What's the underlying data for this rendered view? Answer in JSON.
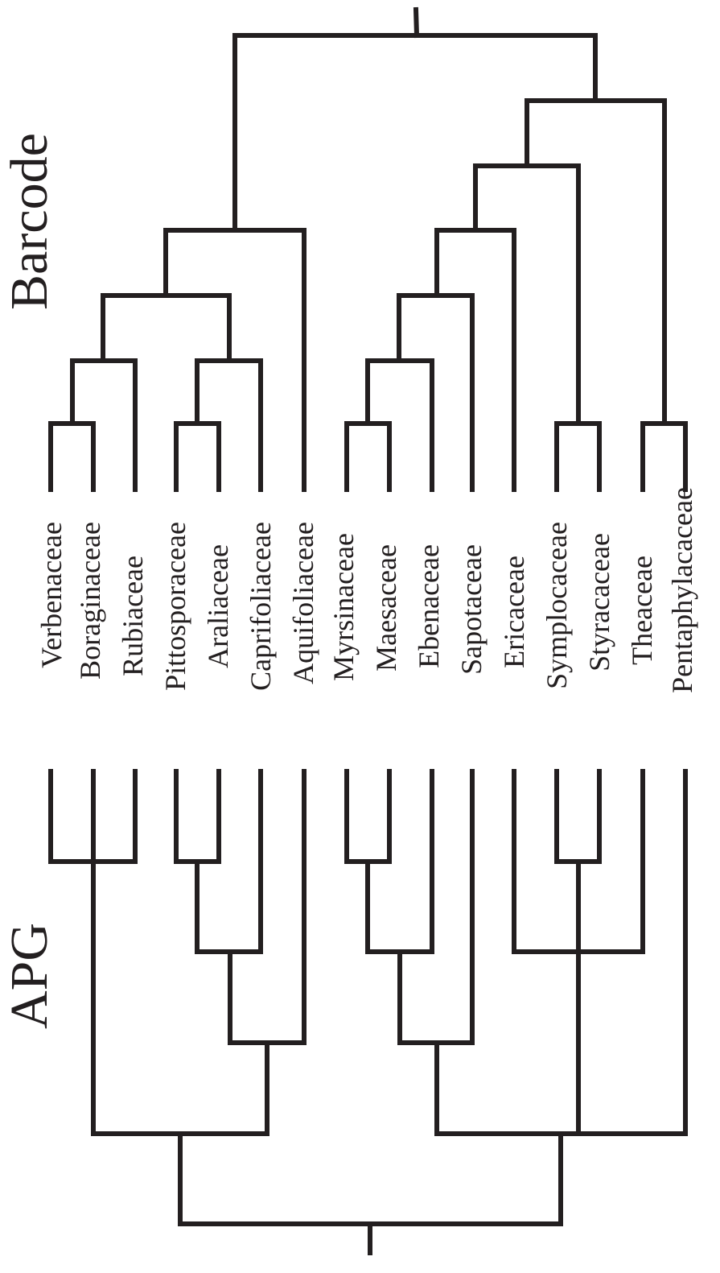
{
  "methods": {
    "top": "Barcode",
    "bottom": "APG"
  },
  "taxa": [
    "Verbenaceae",
    "Boraginaceae",
    "Rubiaceae",
    "Pittosporaceae",
    "Araliaceae",
    "Caprifoliaceae",
    "Aquifoliaceae",
    "Myrsinaceae",
    "Maesaceae",
    "Ebenaceae",
    "Sapotaceae",
    "Ericaceae",
    "Symplocaceae",
    "Styracaceae",
    "Theaceae",
    "Pentaphylacaceae"
  ],
  "barcode_tree": "((((((Verbenaceae,Boraginaceae),Rubiaceae),((Pittosporaceae,Araliaceae),Caprifoliaceae)),Aquifoliaceae)),((((((Myrsinaceae,Maesaceae),Ebenaceae),Sapotaceae),Ericaceae),(Symplocaceae,Styracaceae)),(Theaceae,Pentaphylacaceae)))",
  "apg_tree": "(((Verbenaceae,Boraginaceae,Rubiaceae),(((Pittosporaceae,Araliaceae),Caprifoliaceae),Aquifoliaceae)),((((Myrsinaceae,Maesaceae),Ebenaceae),Sapotaceae),(Ericaceae,(Symplocaceae,Styracaceae),Theaceae),Pentaphylacaceae))"
}
